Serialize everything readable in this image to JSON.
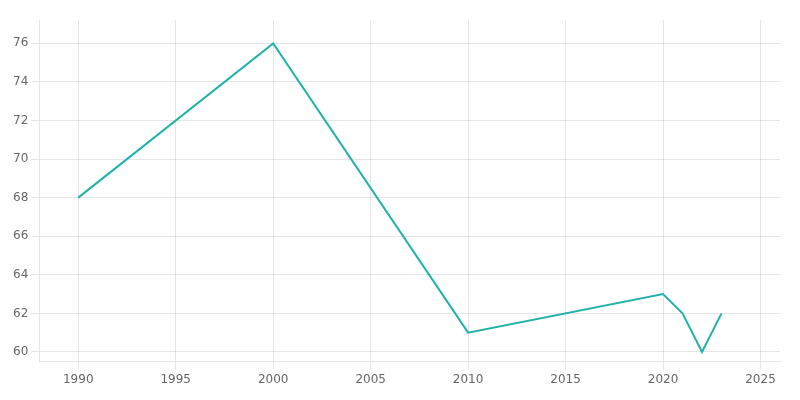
{
  "chart_data": {
    "type": "line",
    "x": [
      1990,
      2000,
      2010,
      2020,
      2021,
      2022,
      2023
    ],
    "values": [
      68,
      76,
      61,
      63,
      62,
      60,
      62
    ],
    "color": "#20B2AA",
    "xlim": [
      1988,
      2026
    ],
    "ylim": [
      59.5,
      77.2
    ],
    "xticks": [
      1990,
      1995,
      2000,
      2005,
      2010,
      2015,
      2020,
      2025
    ],
    "yticks": [
      60,
      62,
      64,
      66,
      68,
      70,
      72,
      74,
      76
    ],
    "grid": true
  }
}
